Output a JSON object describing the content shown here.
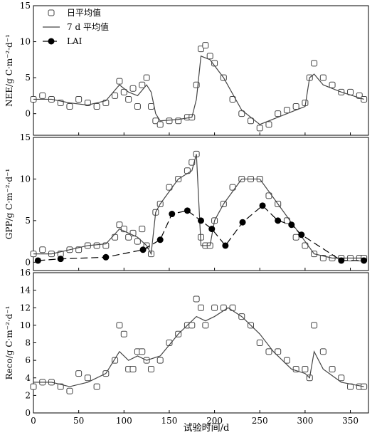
{
  "figure": {
    "xlabel": "试验时间/d",
    "x_ticks": [
      "0",
      "50",
      "100",
      "150",
      "200",
      "250",
      "300",
      "350"
    ]
  },
  "chart_data": [
    {
      "type": "scatter",
      "panel": "NEE",
      "ylabel": "NEE/g C·m⁻²·d⁻¹",
      "xlim": [
        0,
        370
      ],
      "ylim": [
        -3,
        15
      ],
      "y_ticks": [
        0,
        5,
        10,
        15
      ],
      "legend": [
        "日平均值",
        "7 d 平均值",
        "LAI"
      ],
      "legend_position": "top-left",
      "series": [
        {
          "name": "日平均值",
          "x": [
            0,
            10,
            20,
            30,
            40,
            50,
            60,
            70,
            80,
            90,
            95,
            100,
            105,
            110,
            115,
            120,
            125,
            130,
            135,
            140,
            150,
            160,
            170,
            175,
            180,
            185,
            190,
            195,
            200,
            210,
            220,
            230,
            240,
            250,
            260,
            270,
            280,
            290,
            300,
            305,
            310,
            320,
            330,
            340,
            350,
            360,
            365
          ],
          "y": [
            2,
            2.5,
            2,
            1.5,
            1,
            2,
            1.5,
            1,
            1.5,
            2.5,
            4.5,
            3,
            2,
            3.5,
            1,
            4,
            5,
            1,
            -1,
            -1.5,
            -1,
            -1,
            -0.5,
            -0.5,
            4,
            9,
            9.5,
            8,
            7,
            5,
            2,
            0,
            -1,
            -2,
            -1.5,
            0,
            0.5,
            1,
            1.5,
            5,
            7,
            5,
            4,
            3,
            3,
            2.5,
            2
          ]
        },
        {
          "name": "7 d 平均值",
          "x": [
            0,
            20,
            40,
            60,
            80,
            95,
            105,
            115,
            125,
            130,
            135,
            140,
            160,
            175,
            180,
            185,
            195,
            210,
            230,
            250,
            270,
            290,
            300,
            305,
            310,
            320,
            340,
            365
          ],
          "y": [
            2,
            2,
            1.5,
            1.2,
            1.8,
            4,
            3,
            2.5,
            4,
            3,
            0,
            -1,
            -0.8,
            -0.5,
            2,
            8,
            7.5,
            5,
            0.5,
            -1.5,
            -0.5,
            0.5,
            1,
            5,
            5.5,
            4,
            3,
            2
          ]
        }
      ]
    },
    {
      "type": "scatter",
      "panel": "GPP",
      "ylabel": "GPP/g C·m⁻²·d⁻¹",
      "xlim": [
        0,
        370
      ],
      "ylim": [
        -1,
        15
      ],
      "y_ticks": [
        0,
        5,
        10,
        15
      ],
      "series": [
        {
          "name": "日平均值",
          "x": [
            0,
            10,
            20,
            30,
            40,
            50,
            60,
            70,
            80,
            90,
            95,
            100,
            105,
            110,
            115,
            120,
            125,
            130,
            135,
            140,
            150,
            160,
            170,
            175,
            180,
            185,
            190,
            195,
            200,
            210,
            220,
            230,
            240,
            250,
            260,
            270,
            280,
            290,
            300,
            310,
            320,
            330,
            340,
            350,
            360,
            365
          ],
          "y": [
            1,
            1.5,
            1,
            1,
            1.5,
            1.5,
            2,
            2,
            2,
            3,
            4.5,
            4,
            3,
            3.5,
            2.5,
            4,
            2,
            1,
            6,
            7,
            9,
            10,
            11,
            12,
            13,
            3,
            2,
            2,
            5,
            7,
            9,
            10,
            10,
            10,
            8,
            7,
            5,
            3,
            2,
            1,
            0.5,
            0.5,
            0.5,
            0.5,
            0.5,
            0.5
          ]
        },
        {
          "name": "7 d 平均值",
          "x": [
            0,
            20,
            40,
            60,
            80,
            95,
            105,
            115,
            125,
            130,
            135,
            140,
            160,
            175,
            180,
            185,
            190,
            195,
            200,
            210,
            230,
            250,
            270,
            290,
            310,
            330,
            350,
            365
          ],
          "y": [
            1,
            1,
            1.5,
            2,
            2.2,
            4,
            3.5,
            3,
            2,
            1,
            6,
            7,
            10,
            11,
            13,
            2,
            2,
            2,
            5,
            7,
            10,
            10,
            7,
            4,
            1,
            0.5,
            0.5,
            0.5
          ]
        },
        {
          "name": "LAI",
          "x": [
            5,
            30,
            80,
            121,
            140,
            153,
            170,
            185,
            197,
            212,
            231,
            253,
            270,
            285,
            296,
            340,
            365
          ],
          "y": [
            0.2,
            0.4,
            0.6,
            1.5,
            2.7,
            5.8,
            6.2,
            5,
            4,
            2,
            4.8,
            6.8,
            5,
            4.5,
            3.3,
            0.2,
            0.2
          ]
        }
      ]
    },
    {
      "type": "scatter",
      "panel": "Reco",
      "ylabel": "Reco/g C·m⁻²·d⁻¹",
      "ylabel_subscript": "eco",
      "xlim": [
        0,
        370
      ],
      "ylim": [
        0,
        16
      ],
      "y_ticks": [
        0,
        2,
        4,
        6,
        8,
        10,
        12,
        14,
        16
      ],
      "series": [
        {
          "name": "日平均值",
          "x": [
            0,
            10,
            20,
            30,
            40,
            50,
            60,
            70,
            80,
            90,
            95,
            100,
            105,
            110,
            115,
            120,
            125,
            130,
            140,
            150,
            160,
            170,
            175,
            180,
            185,
            190,
            200,
            210,
            220,
            230,
            240,
            250,
            260,
            270,
            280,
            290,
            300,
            305,
            310,
            320,
            330,
            340,
            350,
            360,
            365
          ],
          "y": [
            3,
            3.5,
            3.5,
            3,
            2.5,
            4.5,
            4,
            3,
            4.5,
            6,
            10,
            9,
            5,
            5,
            7,
            7,
            6,
            5,
            6,
            8,
            9,
            10,
            10,
            13,
            12,
            10,
            12,
            12,
            12,
            11,
            10,
            8,
            7,
            7,
            6,
            5,
            5,
            4,
            10,
            7,
            5,
            4,
            3,
            3,
            3
          ]
        },
        {
          "name": "7 d 平均值",
          "x": [
            0,
            20,
            40,
            60,
            80,
            95,
            105,
            115,
            125,
            140,
            160,
            180,
            190,
            200,
            215,
            230,
            250,
            265,
            285,
            300,
            305,
            310,
            320,
            340,
            365
          ],
          "y": [
            3.5,
            3.5,
            3,
            3.5,
            4.5,
            7,
            6,
            6.5,
            6,
            6.5,
            9,
            11,
            10.5,
            11,
            12,
            11,
            9,
            7,
            5,
            4.5,
            4,
            7,
            5,
            3.5,
            3
          ]
        }
      ]
    }
  ]
}
